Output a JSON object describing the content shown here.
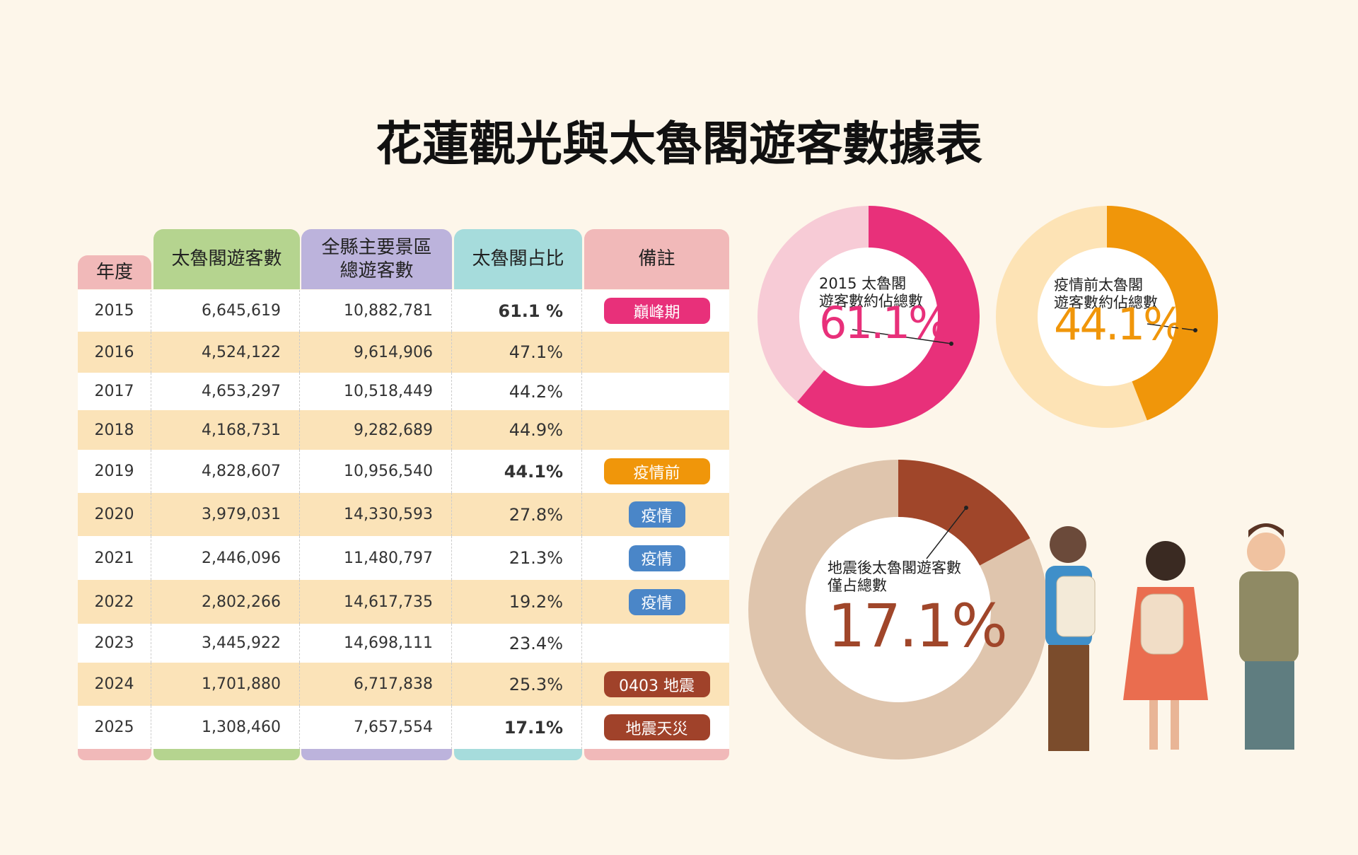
{
  "title": "花蓮觀光與太魯閣遊客數據表",
  "table": {
    "headers": [
      [
        "年度"
      ],
      [
        "太魯閣遊客數"
      ],
      [
        "全縣主要景區",
        "總遊客數"
      ],
      [
        "太魯閣占比"
      ],
      [
        "備註"
      ]
    ],
    "rows": [
      [
        "2015",
        "6,645,619",
        "10,882,781",
        "61.1 %",
        "巔峰期"
      ],
      [
        "2016",
        "4,524,122",
        "9,614,906",
        "47.1%",
        null
      ],
      [
        "2017",
        "4,653,297",
        "10,518,449",
        "44.2%",
        null
      ],
      [
        "2018",
        "4,168,731",
        "9,282,689",
        "44.9%",
        null
      ],
      [
        "2019",
        "4,828,607",
        "10,956,540",
        "44.1%",
        "疫情前"
      ],
      [
        "2020",
        "3,979,031",
        "14,330,593",
        "27.8%",
        "疫情"
      ],
      [
        "2021",
        "2,446,096",
        "11,480,797",
        "21.3%",
        "疫情"
      ],
      [
        "2022",
        "2,802,266",
        "14,617,735",
        "19.2%",
        "疫情"
      ],
      [
        "2023",
        "3,445,922",
        "14,698,111",
        "23.4%",
        null
      ],
      [
        "2024",
        "1,701,880",
        "6,717,838",
        "25.3%",
        "0403 地震"
      ],
      [
        "2025",
        "1,308,460",
        "7,657,554",
        "17.1%",
        "地震天災"
      ]
    ]
  },
  "chart_data": [
    {
      "type": "pie",
      "title": [
        "2015 太魯閣",
        "遊客數約佔總數"
      ],
      "values": [
        61.1
      ],
      "value_labels": [
        "61.1%"
      ],
      "color": "#e8307a",
      "track_color": "#f7cbd6"
    },
    {
      "type": "pie",
      "title": [
        "疫情前太魯閣",
        "遊客數約佔總數"
      ],
      "values": [
        44.1
      ],
      "value_labels": [
        "44.1%"
      ],
      "color": "#f0960a",
      "track_color": "#fde3b5"
    },
    {
      "type": "pie",
      "title": [
        "地震後太魯閣遊客數",
        "僅占總數"
      ],
      "values": [
        17.1
      ],
      "value_labels": [
        "17.1%"
      ],
      "color": "#a0462a",
      "track_color": "#dfc5ad"
    }
  ]
}
